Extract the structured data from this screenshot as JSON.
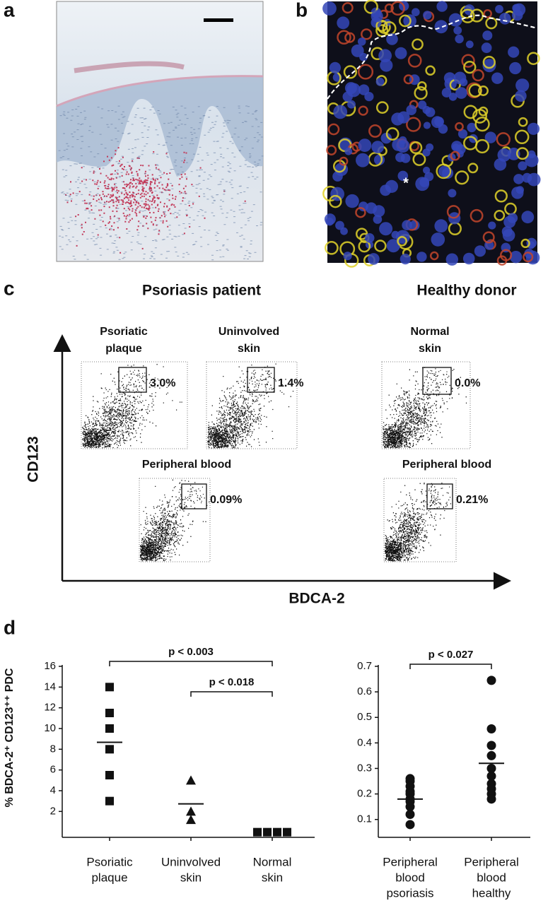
{
  "panel_labels": [
    "a",
    "b",
    "c",
    "d"
  ],
  "micrograph_b_marker": "*",
  "flow": {
    "groups": [
      "Psoriasis patient",
      "Healthy donor"
    ],
    "y_label": "CD123",
    "x_label": "BDCA-2",
    "plots": [
      {
        "title": [
          "Psoriatic",
          "plaque"
        ],
        "gate": "3.0%"
      },
      {
        "title": [
          "Uninvolved",
          "skin"
        ],
        "gate": "1.4%"
      },
      {
        "title": [
          "Normal",
          "skin"
        ],
        "gate": "0.0%"
      },
      {
        "title": [
          "Peripheral blood"
        ],
        "gate": "0.09%"
      },
      {
        "title": [
          "Peripheral blood"
        ],
        "gate": "0.21%"
      }
    ]
  },
  "chart_data": [
    {
      "type": "scatter",
      "y_label": "% BDCA-2⁺ CD123⁺⁺ PDC",
      "categories": [
        [
          "Psoriatic",
          "plaque"
        ],
        [
          "Uninvolved",
          "skin"
        ],
        [
          "Normal",
          "skin"
        ]
      ],
      "markers": [
        "square",
        "triangle",
        "square"
      ],
      "color": "#111111",
      "groups": [
        [
          14,
          11.5,
          10,
          8,
          5.5,
          3
        ],
        [
          5,
          2,
          1.2
        ],
        [
          0,
          0,
          0,
          0
        ]
      ],
      "means": [
        8.67,
        2.73,
        null
      ],
      "ylim": [
        -0.5,
        16
      ],
      "yticks": [
        2,
        4,
        6,
        8,
        10,
        12,
        14,
        16
      ],
      "annotations": [
        {
          "text": "p < 0.003",
          "from": 0,
          "to": 2
        },
        {
          "text": "p < 0.018",
          "from": 1,
          "to": 2
        }
      ]
    },
    {
      "type": "scatter",
      "categories": [
        [
          "Peripheral",
          "blood",
          "psoriasis"
        ],
        [
          "Peripheral",
          "blood",
          "healthy"
        ]
      ],
      "markers": [
        "circle",
        "circle"
      ],
      "color": "#111111",
      "groups": [
        [
          0.26,
          0.25,
          0.23,
          0.21,
          0.2,
          0.18,
          0.17,
          0.15,
          0.12,
          0.08
        ],
        [
          0.645,
          0.455,
          0.39,
          0.35,
          0.3,
          0.27,
          0.24,
          0.22,
          0.2,
          0.18
        ]
      ],
      "means": [
        0.18,
        0.32
      ],
      "ylim": [
        0.03,
        0.7
      ],
      "yticks": [
        0.1,
        0.2,
        0.3,
        0.4,
        0.5,
        0.6,
        0.7
      ],
      "annotations": [
        {
          "text": "p < 0.027",
          "from": 0,
          "to": 1
        }
      ]
    }
  ]
}
